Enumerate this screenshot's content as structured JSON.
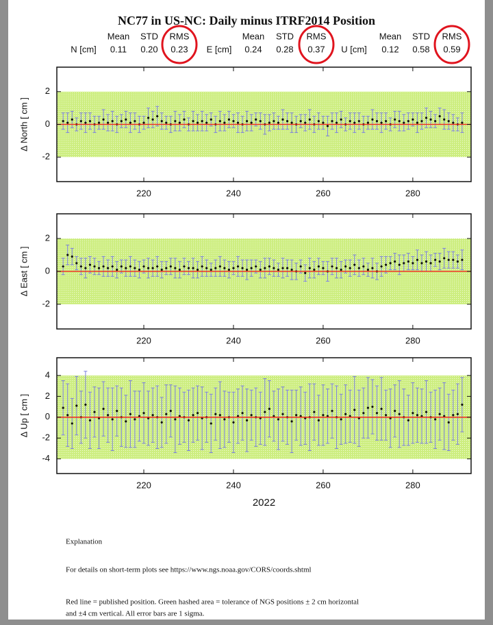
{
  "header": {
    "title": "NC77 in US-NC: Daily minus ITRF2014 Position",
    "columns": [
      "Mean",
      "STD",
      "RMS"
    ],
    "groups": [
      {
        "label": "N [cm]",
        "values": [
          "0.11",
          "0.20",
          "0.23"
        ]
      },
      {
        "label": "E [cm]",
        "values": [
          "0.24",
          "0.28",
          "0.37"
        ]
      },
      {
        "label": "U [cm]",
        "values": [
          "0.12",
          "0.58",
          "0.59"
        ]
      }
    ]
  },
  "chart_data": [
    {
      "type": "errorbar",
      "ylabel": "Δ North  [ cm ]",
      "xlim": [
        200.6,
        293
      ],
      "xticks": [
        220,
        240,
        260,
        280
      ],
      "ylim": [
        -3.5,
        3.5
      ],
      "yticks": [
        -2,
        0,
        2
      ],
      "band": [
        -2,
        2
      ],
      "reference": 0,
      "x": [
        202,
        203,
        204,
        205,
        206,
        207,
        208,
        209,
        210,
        211,
        212,
        213,
        214,
        215,
        216,
        217,
        218,
        219,
        220,
        221,
        222,
        223,
        224,
        225,
        226,
        227,
        228,
        229,
        230,
        231,
        232,
        233,
        234,
        235,
        236,
        237,
        238,
        239,
        240,
        241,
        242,
        243,
        244,
        245,
        246,
        247,
        248,
        249,
        250,
        251,
        252,
        253,
        254,
        255,
        256,
        257,
        258,
        259,
        260,
        261,
        262,
        263,
        264,
        265,
        266,
        267,
        268,
        269,
        270,
        271,
        272,
        273,
        274,
        275,
        276,
        277,
        278,
        279,
        280,
        281,
        282,
        283,
        284,
        285,
        286,
        287,
        288,
        289,
        290,
        291
      ],
      "values": [
        0.2,
        0.1,
        0.3,
        0.0,
        0.2,
        0.1,
        0.2,
        0.0,
        0.1,
        0.3,
        0.1,
        0.2,
        0.0,
        0.2,
        0.3,
        0.1,
        0.2,
        0.0,
        0.1,
        0.4,
        0.3,
        0.5,
        0.2,
        0.1,
        0.0,
        0.2,
        0.1,
        0.3,
        0.0,
        0.2,
        0.1,
        0.2,
        0.1,
        0.3,
        0.0,
        0.2,
        0.1,
        0.3,
        0.2,
        0.1,
        0.0,
        0.2,
        0.1,
        0.3,
        0.2,
        0.0,
        0.1,
        0.2,
        0.1,
        0.3,
        0.2,
        0.1,
        0.0,
        0.2,
        0.1,
        0.3,
        0.0,
        0.2,
        0.1,
        -0.1,
        0.2,
        0.1,
        0.3,
        0.0,
        0.2,
        0.1,
        0.2,
        0.0,
        0.1,
        0.3,
        0.2,
        0.1,
        0.2,
        0.0,
        0.3,
        0.2,
        0.1,
        0.2,
        0.3,
        0.1,
        0.2,
        0.4,
        0.3,
        0.2,
        0.5,
        0.3,
        0.2,
        0.1,
        0.0,
        0.1
      ],
      "errors": [
        0.5,
        0.6,
        0.5,
        0.4,
        0.5,
        0.6,
        0.5,
        0.5,
        0.4,
        0.6,
        0.5,
        0.6,
        0.5,
        0.4,
        0.5,
        0.6,
        0.5,
        0.5,
        0.4,
        0.6,
        0.5,
        0.6,
        0.5,
        0.4,
        0.5,
        0.6,
        0.5,
        0.5,
        0.4,
        0.6,
        0.5,
        0.6,
        0.5,
        0.4,
        0.5,
        0.6,
        0.5,
        0.5,
        0.4,
        0.6,
        0.5,
        0.6,
        0.5,
        0.4,
        0.5,
        0.6,
        0.5,
        0.5,
        0.4,
        0.6,
        0.5,
        0.6,
        0.5,
        0.4,
        0.5,
        0.6,
        0.5,
        0.5,
        0.4,
        0.6,
        0.5,
        0.6,
        0.5,
        0.4,
        0.5,
        0.6,
        0.5,
        0.5,
        0.4,
        0.6,
        0.5,
        0.6,
        0.5,
        0.4,
        0.5,
        0.6,
        0.5,
        0.5,
        0.4,
        0.6,
        0.5,
        0.6,
        0.5,
        0.4,
        0.5,
        0.6,
        0.5,
        0.5,
        0.4,
        0.6
      ]
    },
    {
      "type": "errorbar",
      "ylabel": "Δ East  [ cm ]",
      "xlim": [
        200.6,
        293
      ],
      "xticks": [
        220,
        240,
        260,
        280
      ],
      "ylim": [
        -3.5,
        3.5
      ],
      "yticks": [
        -2,
        0,
        2
      ],
      "band": [
        -2,
        2
      ],
      "reference": 0,
      "x": [
        202,
        203,
        204,
        205,
        206,
        207,
        208,
        209,
        210,
        211,
        212,
        213,
        214,
        215,
        216,
        217,
        218,
        219,
        220,
        221,
        222,
        223,
        224,
        225,
        226,
        227,
        228,
        229,
        230,
        231,
        232,
        233,
        234,
        235,
        236,
        237,
        238,
        239,
        240,
        241,
        242,
        243,
        244,
        245,
        246,
        247,
        248,
        249,
        250,
        251,
        252,
        253,
        254,
        255,
        256,
        257,
        258,
        259,
        260,
        261,
        262,
        263,
        264,
        265,
        266,
        267,
        268,
        269,
        270,
        271,
        272,
        273,
        274,
        275,
        276,
        277,
        278,
        279,
        280,
        281,
        282,
        283,
        284,
        285,
        286,
        287,
        288,
        289,
        290,
        291
      ],
      "values": [
        0.3,
        1.0,
        0.9,
        0.5,
        0.3,
        0.2,
        0.4,
        0.3,
        0.2,
        0.3,
        0.2,
        0.3,
        0.1,
        0.3,
        0.2,
        0.3,
        0.2,
        0.1,
        0.3,
        0.2,
        0.2,
        0.3,
        0.1,
        0.2,
        0.3,
        0.2,
        0.1,
        0.3,
        0.2,
        0.2,
        0.1,
        0.3,
        0.2,
        0.1,
        0.2,
        0.3,
        0.2,
        0.1,
        0.2,
        0.3,
        0.2,
        0.1,
        0.2,
        0.3,
        0.1,
        0.2,
        0.3,
        0.2,
        0.1,
        0.2,
        0.2,
        0.1,
        0.0,
        0.3,
        -0.1,
        0.2,
        0.1,
        0.3,
        0.2,
        0.0,
        0.3,
        0.2,
        0.1,
        0.3,
        0.2,
        0.4,
        0.2,
        0.3,
        0.1,
        0.2,
        0.0,
        0.3,
        0.4,
        0.5,
        0.6,
        0.4,
        0.5,
        0.6,
        0.5,
        0.7,
        0.5,
        0.6,
        0.5,
        0.7,
        0.6,
        0.8,
        0.7,
        0.7,
        0.6,
        0.7
      ],
      "errors": [
        0.5,
        0.6,
        0.5,
        0.4,
        0.5,
        0.6,
        0.5,
        0.5,
        0.4,
        0.6,
        0.5,
        0.6,
        0.5,
        0.4,
        0.5,
        0.6,
        0.5,
        0.5,
        0.4,
        0.6,
        0.5,
        0.6,
        0.5,
        0.4,
        0.5,
        0.6,
        0.5,
        0.5,
        0.4,
        0.6,
        0.5,
        0.6,
        0.5,
        0.4,
        0.5,
        0.6,
        0.5,
        0.5,
        0.4,
        0.6,
        0.5,
        0.6,
        0.5,
        0.4,
        0.5,
        0.6,
        0.5,
        0.5,
        0.4,
        0.6,
        0.5,
        0.6,
        0.5,
        0.4,
        0.5,
        0.6,
        0.5,
        0.5,
        0.4,
        0.6,
        0.5,
        0.6,
        0.5,
        0.4,
        0.5,
        0.6,
        0.5,
        0.5,
        0.4,
        0.6,
        0.5,
        0.6,
        0.5,
        0.4,
        0.5,
        0.6,
        0.5,
        0.5,
        0.4,
        0.6,
        0.5,
        0.6,
        0.5,
        0.4,
        0.5,
        0.6,
        0.5,
        0.5,
        0.4,
        0.6
      ]
    },
    {
      "type": "errorbar",
      "ylabel": "Δ Up  [ cm ]",
      "xlabel": "2022",
      "xlim": [
        200.6,
        293
      ],
      "xticks": [
        220,
        240,
        260,
        280
      ],
      "ylim": [
        -5.4,
        5.7
      ],
      "yticks": [
        -4,
        -2,
        0,
        2,
        4
      ],
      "band": [
        -4,
        4
      ],
      "reference": 0,
      "x": [
        202,
        203,
        204,
        205,
        206,
        207,
        208,
        209,
        210,
        211,
        212,
        213,
        214,
        215,
        216,
        217,
        218,
        219,
        220,
        221,
        222,
        223,
        224,
        225,
        226,
        227,
        228,
        229,
        230,
        231,
        232,
        233,
        234,
        235,
        236,
        237,
        238,
        239,
        240,
        241,
        242,
        243,
        244,
        245,
        246,
        247,
        248,
        249,
        250,
        251,
        252,
        253,
        254,
        255,
        256,
        257,
        258,
        259,
        260,
        261,
        262,
        263,
        264,
        265,
        266,
        267,
        268,
        269,
        270,
        271,
        272,
        273,
        274,
        275,
        276,
        277,
        278,
        279,
        280,
        281,
        282,
        283,
        284,
        285,
        286,
        287,
        288,
        289,
        290,
        291
      ],
      "values": [
        0.9,
        0.2,
        -0.6,
        1.1,
        0.0,
        1.2,
        -0.3,
        0.5,
        -0.1,
        0.8,
        0.2,
        -0.2,
        0.6,
        0.0,
        -0.4,
        0.3,
        -0.2,
        0.1,
        0.4,
        -0.1,
        0.2,
        0.0,
        -0.5,
        0.3,
        0.6,
        -0.2,
        0.1,
        0.0,
        -0.3,
        0.2,
        0.4,
        -0.1,
        0.0,
        -0.6,
        0.3,
        0.2,
        -0.2,
        0.0,
        -0.5,
        0.1,
        0.4,
        -0.3,
        0.2,
        0.0,
        -0.1,
        0.5,
        0.8,
        0.1,
        -0.2,
        0.3,
        0.0,
        -0.4,
        0.2,
        0.1,
        -0.1,
        0.0,
        0.5,
        -0.3,
        0.2,
        0.1,
        0.6,
        0.0,
        -0.2,
        0.3,
        0.1,
        0.7,
        -0.1,
        0.4,
        0.9,
        1.0,
        0.4,
        0.8,
        0.2,
        -0.1,
        0.6,
        0.3,
        0.0,
        -0.3,
        0.4,
        0.2,
        0.1,
        0.5,
        0.0,
        -0.2,
        0.3,
        0.1,
        -0.5,
        0.2,
        0.3,
        1.2
      ],
      "errors": [
        2.6,
        3.0,
        2.4,
        2.8,
        2.5,
        3.2,
        2.7,
        2.4,
        2.9,
        2.6,
        2.6,
        3.0,
        2.4,
        2.8,
        2.5,
        3.2,
        2.7,
        2.4,
        2.9,
        2.6,
        2.6,
        3.0,
        2.4,
        2.8,
        2.5,
        3.2,
        2.7,
        2.4,
        2.9,
        2.6,
        2.6,
        3.0,
        2.4,
        2.8,
        2.5,
        3.2,
        2.7,
        2.4,
        2.9,
        2.6,
        2.6,
        3.0,
        2.4,
        2.8,
        2.5,
        3.2,
        2.7,
        2.4,
        2.9,
        2.6,
        2.6,
        3.0,
        2.4,
        2.8,
        2.5,
        3.2,
        2.7,
        2.4,
        2.9,
        2.6,
        2.6,
        3.0,
        2.4,
        2.8,
        2.5,
        3.2,
        2.7,
        2.4,
        2.9,
        2.6,
        2.6,
        3.0,
        2.4,
        2.8,
        2.5,
        3.2,
        2.7,
        2.4,
        2.9,
        2.6,
        2.6,
        3.0,
        2.4,
        2.8,
        2.5,
        3.2,
        2.7,
        2.4,
        2.9,
        2.6
      ]
    }
  ],
  "footer": {
    "heading": "Explanation",
    "details": "For details on short-term plots see https://www.ngs.noaa.gov/CORS/coords.shtml",
    "notes": [
      "Red line = published position.  Green hashed area = tolerance of NGS positions ± 2 cm horizontal",
      "and ±4 cm vertical.  All error bars are 1 sigma."
    ]
  }
}
